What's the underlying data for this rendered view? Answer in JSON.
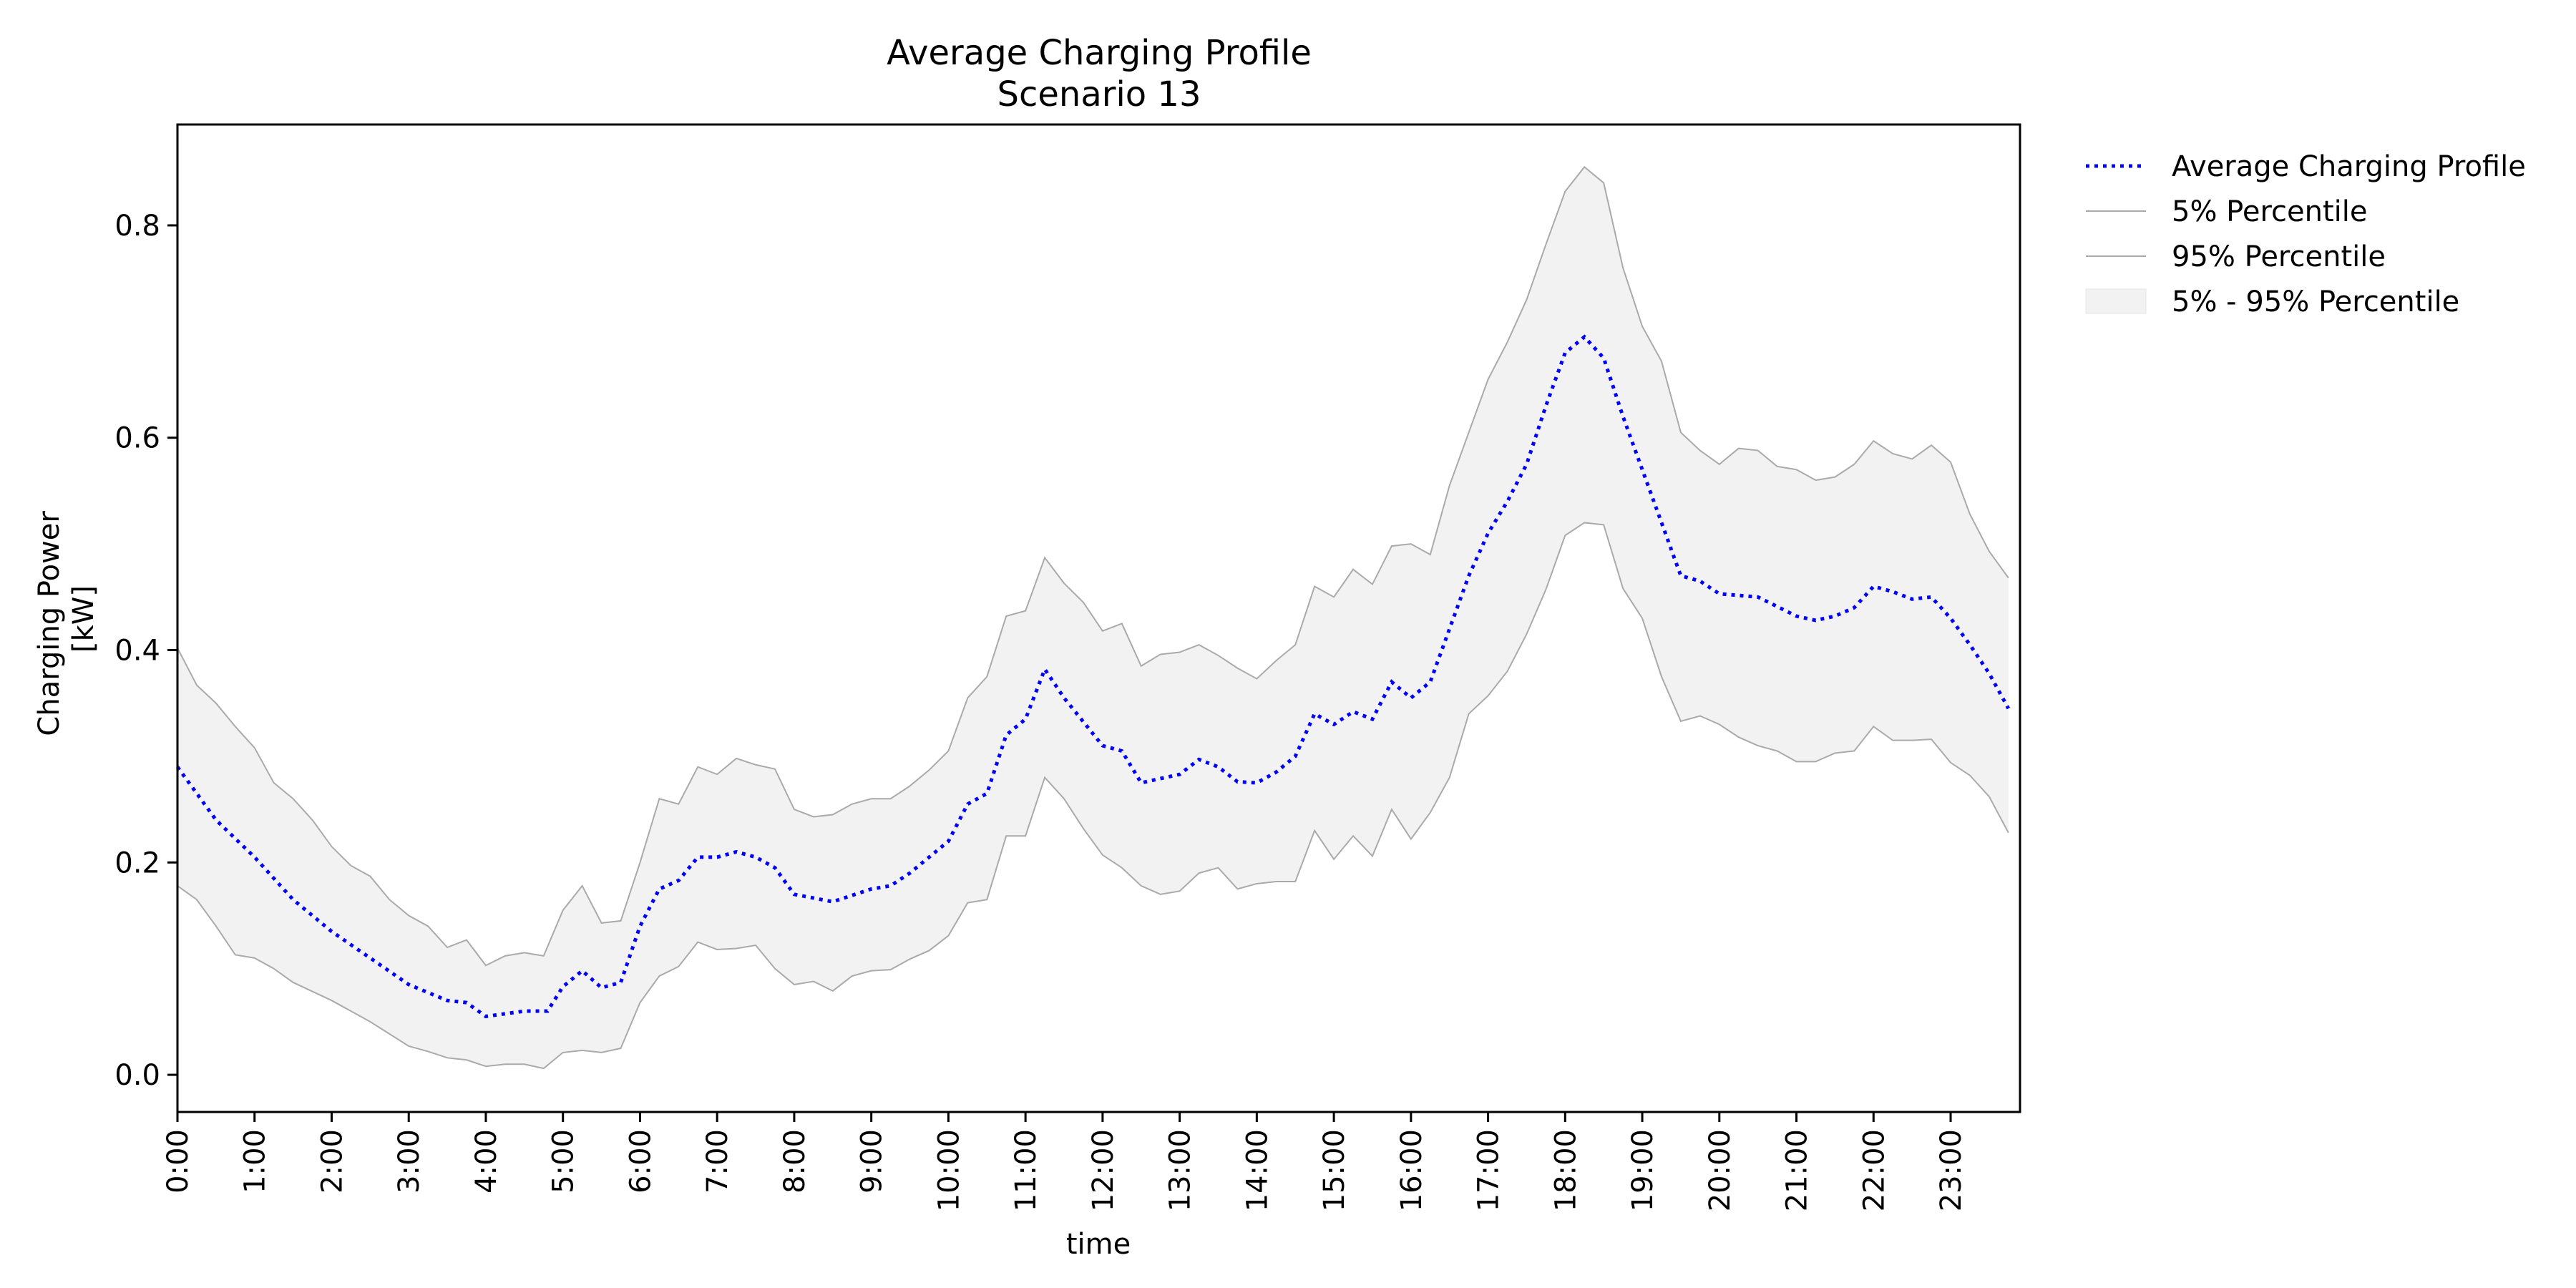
{
  "chart_data": {
    "type": "line",
    "title": "Average Charging Profile",
    "subtitle": "Scenario 13",
    "xlabel": "time",
    "ylabel_lines": [
      "Charging Power",
      "[kW]"
    ],
    "xlim": [
      0,
      23.9
    ],
    "ylim": [
      -0.035,
      0.895
    ],
    "x_ticks": [
      {
        "value": 0,
        "label": "0:00"
      },
      {
        "value": 1,
        "label": "1:00"
      },
      {
        "value": 2,
        "label": "2:00"
      },
      {
        "value": 3,
        "label": "3:00"
      },
      {
        "value": 4,
        "label": "4:00"
      },
      {
        "value": 5,
        "label": "5:00"
      },
      {
        "value": 6,
        "label": "6:00"
      },
      {
        "value": 7,
        "label": "7:00"
      },
      {
        "value": 8,
        "label": "8:00"
      },
      {
        "value": 9,
        "label": "9:00"
      },
      {
        "value": 10,
        "label": "10:00"
      },
      {
        "value": 11,
        "label": "11:00"
      },
      {
        "value": 12,
        "label": "12:00"
      },
      {
        "value": 13,
        "label": "13:00"
      },
      {
        "value": 14,
        "label": "14:00"
      },
      {
        "value": 15,
        "label": "15:00"
      },
      {
        "value": 16,
        "label": "16:00"
      },
      {
        "value": 17,
        "label": "17:00"
      },
      {
        "value": 18,
        "label": "18:00"
      },
      {
        "value": 19,
        "label": "19:00"
      },
      {
        "value": 20,
        "label": "20:00"
      },
      {
        "value": 21,
        "label": "21:00"
      },
      {
        "value": 22,
        "label": "22:00"
      },
      {
        "value": 23,
        "label": "23:00"
      }
    ],
    "y_ticks": [
      {
        "value": 0.0,
        "label": "0.0"
      },
      {
        "value": 0.2,
        "label": "0.2"
      },
      {
        "value": 0.4,
        "label": "0.4"
      },
      {
        "value": 0.6,
        "label": "0.6"
      },
      {
        "value": 0.8,
        "label": "0.8"
      }
    ],
    "grid": false,
    "legend_position": "outside-right-top",
    "legend": [
      {
        "label": "Average Charging Profile",
        "kind": "dotted-line",
        "color": "#0000ff"
      },
      {
        "label": "5% Percentile",
        "kind": "line",
        "color": "#aaaaaa"
      },
      {
        "label": "95% Percentile",
        "kind": "line",
        "color": "#aaaaaa"
      },
      {
        "label": "5% - 95% Percentile",
        "kind": "band",
        "color": "#f2f2f2"
      }
    ],
    "colors": {
      "mean": "#0000ff",
      "percentile": "#aaaaaa",
      "band": "#f2f2f2"
    },
    "series": [
      {
        "name": "Average Charging Profile",
        "points": [
          [
            0,
            0.29
          ],
          [
            0.5,
            0.24
          ],
          [
            1,
            0.205
          ],
          [
            1.5,
            0.165
          ],
          [
            2,
            0.135
          ],
          [
            2.5,
            0.11
          ],
          [
            3,
            0.085
          ],
          [
            3.5,
            0.07
          ],
          [
            3.75,
            0.068
          ],
          [
            4,
            0.055
          ],
          [
            4.5,
            0.06
          ],
          [
            4.8,
            0.06
          ],
          [
            5,
            0.083
          ],
          [
            5.25,
            0.098
          ],
          [
            5.5,
            0.082
          ],
          [
            5.75,
            0.087
          ],
          [
            6,
            0.14
          ],
          [
            6.25,
            0.175
          ],
          [
            6.5,
            0.183
          ],
          [
            6.75,
            0.205
          ],
          [
            7,
            0.205
          ],
          [
            7.25,
            0.21
          ],
          [
            7.5,
            0.205
          ],
          [
            7.75,
            0.195
          ],
          [
            8,
            0.17
          ],
          [
            8.5,
            0.163
          ],
          [
            9,
            0.175
          ],
          [
            9.25,
            0.178
          ],
          [
            9.5,
            0.19
          ],
          [
            10,
            0.22
          ],
          [
            10.25,
            0.255
          ],
          [
            10.5,
            0.265
          ],
          [
            10.75,
            0.32
          ],
          [
            11,
            0.335
          ],
          [
            11.25,
            0.382
          ],
          [
            11.5,
            0.355
          ],
          [
            12,
            0.31
          ],
          [
            12.25,
            0.305
          ],
          [
            12.5,
            0.275
          ],
          [
            13,
            0.283
          ],
          [
            13.25,
            0.297
          ],
          [
            13.5,
            0.29
          ],
          [
            13.75,
            0.276
          ],
          [
            14,
            0.275
          ],
          [
            14.25,
            0.285
          ],
          [
            14.5,
            0.3
          ],
          [
            14.75,
            0.34
          ],
          [
            15,
            0.33
          ],
          [
            15.25,
            0.342
          ],
          [
            15.5,
            0.335
          ],
          [
            15.75,
            0.37
          ],
          [
            16,
            0.355
          ],
          [
            16.25,
            0.37
          ],
          [
            16.5,
            0.42
          ],
          [
            16.75,
            0.47
          ],
          [
            17,
            0.51
          ],
          [
            17.25,
            0.54
          ],
          [
            17.5,
            0.575
          ],
          [
            17.75,
            0.63
          ],
          [
            18,
            0.68
          ],
          [
            18.25,
            0.695
          ],
          [
            18.5,
            0.675
          ],
          [
            18.75,
            0.62
          ],
          [
            19,
            0.57
          ],
          [
            19.25,
            0.52
          ],
          [
            19.5,
            0.47
          ],
          [
            19.75,
            0.465
          ],
          [
            20,
            0.453
          ],
          [
            20.5,
            0.45
          ],
          [
            21,
            0.432
          ],
          [
            21.25,
            0.428
          ],
          [
            21.5,
            0.432
          ],
          [
            21.75,
            0.44
          ],
          [
            22,
            0.46
          ],
          [
            22.25,
            0.455
          ],
          [
            22.5,
            0.448
          ],
          [
            22.75,
            0.45
          ],
          [
            23,
            0.43
          ],
          [
            23.25,
            0.405
          ],
          [
            23.5,
            0.378
          ],
          [
            23.75,
            0.345
          ]
        ]
      },
      {
        "name": "5% Percentile",
        "points": [
          [
            0,
            0.178
          ],
          [
            0.25,
            0.165
          ],
          [
            0.5,
            0.14
          ],
          [
            0.75,
            0.113
          ],
          [
            1,
            0.11
          ],
          [
            1.25,
            0.1
          ],
          [
            1.5,
            0.087
          ],
          [
            2,
            0.07
          ],
          [
            2.5,
            0.05
          ],
          [
            3,
            0.027
          ],
          [
            3.25,
            0.022
          ],
          [
            3.5,
            0.016
          ],
          [
            3.75,
            0.014
          ],
          [
            4,
            0.008
          ],
          [
            4.25,
            0.01
          ],
          [
            4.5,
            0.01
          ],
          [
            4.75,
            0.006
          ],
          [
            5,
            0.021
          ],
          [
            5.25,
            0.023
          ],
          [
            5.5,
            0.021
          ],
          [
            5.75,
            0.025
          ],
          [
            6,
            0.068
          ],
          [
            6.25,
            0.093
          ],
          [
            6.5,
            0.102
          ],
          [
            6.75,
            0.125
          ],
          [
            7,
            0.118
          ],
          [
            7.25,
            0.119
          ],
          [
            7.5,
            0.122
          ],
          [
            7.75,
            0.1
          ],
          [
            8,
            0.085
          ],
          [
            8.25,
            0.088
          ],
          [
            8.5,
            0.079
          ],
          [
            8.75,
            0.093
          ],
          [
            9,
            0.098
          ],
          [
            9.25,
            0.099
          ],
          [
            9.5,
            0.109
          ],
          [
            9.75,
            0.117
          ],
          [
            10,
            0.131
          ],
          [
            10.25,
            0.162
          ],
          [
            10.5,
            0.165
          ],
          [
            10.75,
            0.225
          ],
          [
            11,
            0.225
          ],
          [
            11.25,
            0.28
          ],
          [
            11.5,
            0.26
          ],
          [
            11.75,
            0.232
          ],
          [
            12,
            0.207
          ],
          [
            12.25,
            0.195
          ],
          [
            12.5,
            0.178
          ],
          [
            12.75,
            0.17
          ],
          [
            13,
            0.173
          ],
          [
            13.25,
            0.19
          ],
          [
            13.5,
            0.195
          ],
          [
            13.75,
            0.175
          ],
          [
            14,
            0.18
          ],
          [
            14.25,
            0.182
          ],
          [
            14.5,
            0.182
          ],
          [
            14.75,
            0.23
          ],
          [
            15,
            0.203
          ],
          [
            15.25,
            0.225
          ],
          [
            15.5,
            0.206
          ],
          [
            15.75,
            0.25
          ],
          [
            16,
            0.222
          ],
          [
            16.25,
            0.247
          ],
          [
            16.5,
            0.28
          ],
          [
            16.75,
            0.34
          ],
          [
            17,
            0.357
          ],
          [
            17.25,
            0.38
          ],
          [
            17.5,
            0.415
          ],
          [
            17.75,
            0.457
          ],
          [
            18,
            0.508
          ],
          [
            18.25,
            0.52
          ],
          [
            18.5,
            0.518
          ],
          [
            18.75,
            0.458
          ],
          [
            19,
            0.43
          ],
          [
            19.25,
            0.375
          ],
          [
            19.5,
            0.333
          ],
          [
            19.75,
            0.338
          ],
          [
            20,
            0.33
          ],
          [
            20.25,
            0.318
          ],
          [
            20.5,
            0.31
          ],
          [
            20.75,
            0.305
          ],
          [
            21,
            0.295
          ],
          [
            21.25,
            0.295
          ],
          [
            21.5,
            0.303
          ],
          [
            21.75,
            0.305
          ],
          [
            22,
            0.328
          ],
          [
            22.25,
            0.315
          ],
          [
            22.5,
            0.315
          ],
          [
            22.75,
            0.316
          ],
          [
            23,
            0.294
          ],
          [
            23.25,
            0.282
          ],
          [
            23.5,
            0.262
          ],
          [
            23.75,
            0.228
          ]
        ]
      },
      {
        "name": "95% Percentile",
        "points": [
          [
            0,
            0.402
          ],
          [
            0.25,
            0.367
          ],
          [
            0.5,
            0.35
          ],
          [
            0.75,
            0.328
          ],
          [
            1,
            0.308
          ],
          [
            1.25,
            0.275
          ],
          [
            1.5,
            0.26
          ],
          [
            1.75,
            0.24
          ],
          [
            2,
            0.215
          ],
          [
            2.25,
            0.197
          ],
          [
            2.5,
            0.187
          ],
          [
            2.75,
            0.165
          ],
          [
            3,
            0.15
          ],
          [
            3.25,
            0.14
          ],
          [
            3.5,
            0.12
          ],
          [
            3.75,
            0.127
          ],
          [
            4,
            0.103
          ],
          [
            4.25,
            0.112
          ],
          [
            4.5,
            0.115
          ],
          [
            4.75,
            0.112
          ],
          [
            5,
            0.155
          ],
          [
            5.25,
            0.178
          ],
          [
            5.5,
            0.143
          ],
          [
            5.75,
            0.145
          ],
          [
            6,
            0.2
          ],
          [
            6.25,
            0.26
          ],
          [
            6.5,
            0.255
          ],
          [
            6.75,
            0.29
          ],
          [
            7,
            0.283
          ],
          [
            7.25,
            0.298
          ],
          [
            7.5,
            0.292
          ],
          [
            7.75,
            0.288
          ],
          [
            8,
            0.25
          ],
          [
            8.25,
            0.243
          ],
          [
            8.5,
            0.245
          ],
          [
            8.75,
            0.255
          ],
          [
            9,
            0.26
          ],
          [
            9.25,
            0.26
          ],
          [
            9.5,
            0.272
          ],
          [
            9.75,
            0.287
          ],
          [
            10,
            0.305
          ],
          [
            10.25,
            0.355
          ],
          [
            10.5,
            0.375
          ],
          [
            10.75,
            0.432
          ],
          [
            11,
            0.437
          ],
          [
            11.25,
            0.487
          ],
          [
            11.5,
            0.463
          ],
          [
            11.75,
            0.445
          ],
          [
            12,
            0.418
          ],
          [
            12.25,
            0.425
          ],
          [
            12.5,
            0.385
          ],
          [
            12.75,
            0.396
          ],
          [
            13,
            0.398
          ],
          [
            13.25,
            0.405
          ],
          [
            13.5,
            0.395
          ],
          [
            13.75,
            0.383
          ],
          [
            14,
            0.373
          ],
          [
            14.25,
            0.39
          ],
          [
            14.5,
            0.405
          ],
          [
            14.75,
            0.46
          ],
          [
            15,
            0.45
          ],
          [
            15.25,
            0.476
          ],
          [
            15.5,
            0.462
          ],
          [
            15.75,
            0.498
          ],
          [
            16,
            0.5
          ],
          [
            16.25,
            0.49
          ],
          [
            16.5,
            0.555
          ],
          [
            16.75,
            0.605
          ],
          [
            17,
            0.655
          ],
          [
            17.25,
            0.69
          ],
          [
            17.5,
            0.73
          ],
          [
            17.75,
            0.782
          ],
          [
            18,
            0.832
          ],
          [
            18.25,
            0.855
          ],
          [
            18.5,
            0.84
          ],
          [
            18.75,
            0.76
          ],
          [
            19,
            0.705
          ],
          [
            19.25,
            0.672
          ],
          [
            19.5,
            0.605
          ],
          [
            19.75,
            0.588
          ],
          [
            20,
            0.575
          ],
          [
            20.25,
            0.59
          ],
          [
            20.5,
            0.588
          ],
          [
            20.75,
            0.573
          ],
          [
            21,
            0.57
          ],
          [
            21.25,
            0.56
          ],
          [
            21.5,
            0.563
          ],
          [
            21.75,
            0.575
          ],
          [
            22,
            0.597
          ],
          [
            22.25,
            0.585
          ],
          [
            22.5,
            0.58
          ],
          [
            22.75,
            0.593
          ],
          [
            23,
            0.577
          ],
          [
            23.25,
            0.528
          ],
          [
            23.5,
            0.493
          ],
          [
            23.75,
            0.468
          ]
        ]
      }
    ]
  }
}
